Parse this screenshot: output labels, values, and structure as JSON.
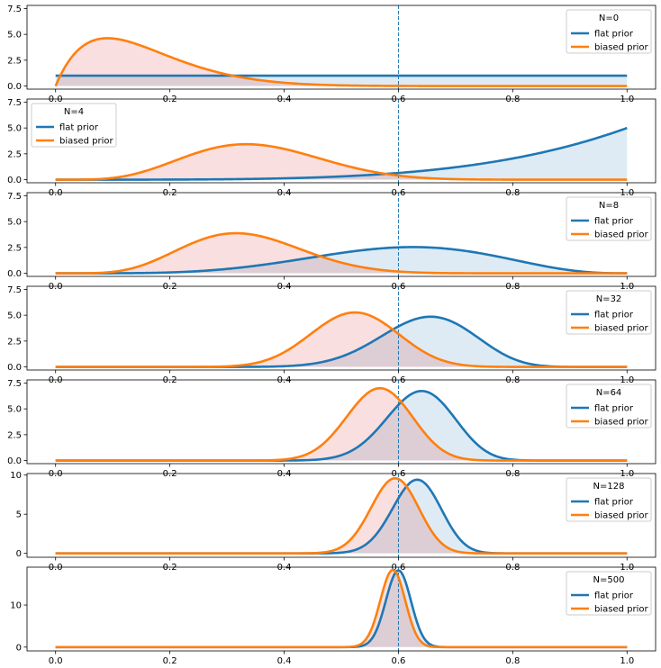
{
  "chart_data": {
    "type": "line",
    "x_range": [
      0,
      1
    ],
    "vline_x": 0.6,
    "x_ticks": [
      "0.0",
      "0.2",
      "0.4",
      "0.6",
      "0.8",
      "1.0"
    ],
    "series_names": [
      "flat prior",
      "biased prior"
    ],
    "colors": {
      "flat_line": "#1f77b4",
      "biased_line": "#ff7f0e",
      "flat_fill": "#d6e8f3",
      "biased_fill": "#f6d6dc",
      "overlap_fill": "#d3c6da"
    },
    "panels": [
      {
        "legend_title": "N=0",
        "legend_position": "top-right",
        "ylim": [
          -0.3,
          7.8
        ],
        "y_ticks": [
          "0.0",
          "2.5",
          "5.0",
          "7.5"
        ],
        "y_tick_values": [
          0,
          2.5,
          5,
          7.5
        ],
        "flat": {
          "type": "uniform"
        },
        "biased": {
          "a": 2,
          "b": 11
        }
      },
      {
        "legend_title": "N=4",
        "legend_position": "top-left",
        "ylim": [
          -0.3,
          7.8
        ],
        "y_ticks": [
          "0.0",
          "2.5",
          "5.0",
          "7.5"
        ],
        "y_tick_values": [
          0,
          2.5,
          5,
          7.5
        ],
        "flat": {
          "a": 5,
          "b": 1
        },
        "biased": {
          "a": 6,
          "b": 11
        }
      },
      {
        "legend_title": "N=8",
        "legend_position": "top-right",
        "ylim": [
          -0.3,
          7.8
        ],
        "y_ticks": [
          "0.0",
          "2.5",
          "5.0",
          "7.5"
        ],
        "y_tick_values": [
          0,
          2.5,
          5,
          7.5
        ],
        "flat": {
          "a": 6,
          "b": 4
        },
        "biased": {
          "a": 7,
          "b": 14
        }
      },
      {
        "legend_title": "N=32",
        "legend_position": "top-right",
        "ylim": [
          -0.3,
          7.8
        ],
        "y_ticks": [
          "0.0",
          "2.5",
          "5.0",
          "7.5"
        ],
        "y_tick_values": [
          0,
          2.5,
          5,
          7.5
        ],
        "flat": {
          "a": 22,
          "b": 12
        },
        "biased": {
          "a": 23,
          "b": 21
        }
      },
      {
        "legend_title": "N=64",
        "legend_position": "top-right",
        "ylim": [
          -0.3,
          7.8
        ],
        "y_ticks": [
          "0.0",
          "2.5",
          "5.0",
          "7.5"
        ],
        "y_tick_values": [
          0,
          2.5,
          5,
          7.5
        ],
        "flat": {
          "a": 42,
          "b": 24
        },
        "biased": {
          "a": 43,
          "b": 33
        }
      },
      {
        "legend_title": "N=128",
        "legend_position": "top-right",
        "ylim": [
          -0.5,
          10.2
        ],
        "y_ticks": [
          "0",
          "5",
          "10"
        ],
        "y_tick_values": [
          0,
          5,
          10
        ],
        "flat": {
          "a": 82,
          "b": 48
        },
        "biased": {
          "a": 83,
          "b": 57
        }
      },
      {
        "legend_title": "N=500",
        "legend_position": "top-right",
        "ylim": [
          -0.9,
          19.0
        ],
        "y_ticks": [
          "0",
          "10"
        ],
        "y_tick_values": [
          0,
          10
        ],
        "flat": {
          "a": 301,
          "b": 201
        },
        "biased": {
          "a": 302,
          "b": 210
        }
      }
    ]
  }
}
